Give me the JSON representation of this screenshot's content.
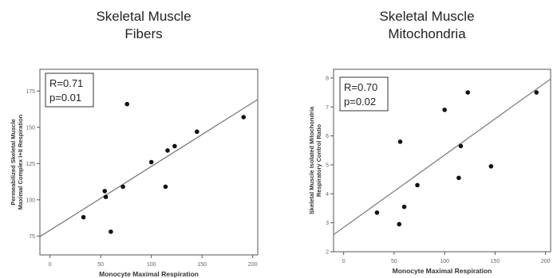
{
  "chart_data": [
    {
      "type": "scatter",
      "title_lines": [
        "Skeletal Muscle",
        "Fibers"
      ],
      "xlabel": "Monocyte Maximal Respiration",
      "ylabel_lines": [
        "Permeabilized Skeletal Muscle",
        "Maximal Complex I+II Respiration"
      ],
      "xlim": [
        -10,
        205
      ],
      "ylim": [
        62,
        190
      ],
      "xticks": [
        0,
        50,
        100,
        150,
        200
      ],
      "yticks": [
        75,
        100,
        125,
        150,
        175
      ],
      "stats": [
        "R=0.71",
        "p=0.01"
      ],
      "regression": {
        "slope": 0.44,
        "intercept": 79
      },
      "points": [
        {
          "x": 33,
          "y": 88
        },
        {
          "x": 54,
          "y": 106
        },
        {
          "x": 55,
          "y": 102
        },
        {
          "x": 60,
          "y": 78
        },
        {
          "x": 72,
          "y": 109
        },
        {
          "x": 76,
          "y": 166
        },
        {
          "x": 100,
          "y": 126
        },
        {
          "x": 114,
          "y": 109
        },
        {
          "x": 116,
          "y": 134
        },
        {
          "x": 123,
          "y": 137
        },
        {
          "x": 145,
          "y": 147
        },
        {
          "x": 191,
          "y": 157
        }
      ]
    },
    {
      "type": "scatter",
      "title_lines": [
        "Skeletal Muscle",
        "Mitochondria"
      ],
      "xlabel": "Monocyte Maximal Respiration",
      "ylabel_lines": [
        "Skeletal Muscle Isolated Mitochondria",
        "Respiratory Control Ratio"
      ],
      "xlim": [
        -10,
        205
      ],
      "ylim": [
        2,
        8.3
      ],
      "xticks": [
        0,
        50,
        100,
        150,
        200
      ],
      "yticks": [
        2,
        3,
        4,
        5,
        6,
        7,
        8
      ],
      "stats": [
        "R=0.70",
        "p=0.02"
      ],
      "regression": {
        "slope": 0.025,
        "intercept": 2.84
      },
      "points": [
        {
          "x": 33,
          "y": 3.35
        },
        {
          "x": 55,
          "y": 2.95
        },
        {
          "x": 56,
          "y": 5.8
        },
        {
          "x": 60,
          "y": 3.55
        },
        {
          "x": 73,
          "y": 4.3
        },
        {
          "x": 100,
          "y": 6.9
        },
        {
          "x": 114,
          "y": 4.55
        },
        {
          "x": 116,
          "y": 5.65
        },
        {
          "x": 123,
          "y": 7.5
        },
        {
          "x": 146,
          "y": 4.95
        },
        {
          "x": 191,
          "y": 7.5
        }
      ]
    }
  ]
}
